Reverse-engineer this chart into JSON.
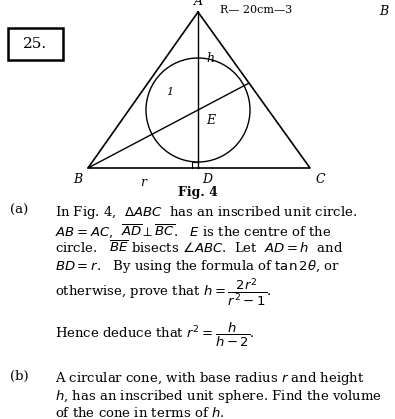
{
  "question_number": "25.",
  "fig_label": "Fig. 4",
  "header_text": "B",
  "header_left": "R— 20cm—3",
  "bg_color": "#ffffff",
  "text_color": "#000000",
  "label_A": "A",
  "label_B": "B",
  "label_C": "C",
  "label_D": "D",
  "label_E": "E",
  "label_r": "r",
  "label_h": "h",
  "label_1": "1"
}
